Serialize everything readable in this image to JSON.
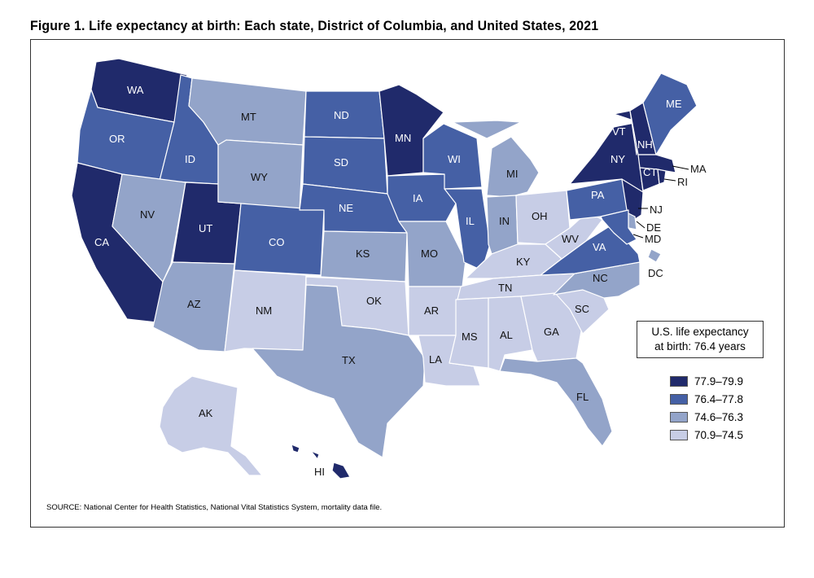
{
  "title": "Figure 1. Life expectancy at birth: Each state, District of Columbia, and United States, 2021",
  "us_box": {
    "line1": "U.S. life expectancy",
    "line2": "at birth: 76.4 years"
  },
  "colors": {
    "c1": "#202a6b",
    "c2": "#4560a5",
    "c3": "#93a4c9",
    "c4": "#c7cde6"
  },
  "legend": [
    {
      "label": "77.9–79.9",
      "color": "#202a6b"
    },
    {
      "label": "76.4–77.8",
      "color": "#4560a5"
    },
    {
      "label": "74.6–76.3",
      "color": "#93a4c9"
    },
    {
      "label": "70.9–74.5",
      "color": "#c7cde6"
    }
  ],
  "states": {
    "WA": {
      "label": "WA",
      "class": "77.9–79.9"
    },
    "OR": {
      "label": "OR",
      "class": "76.4–77.8"
    },
    "CA": {
      "label": "CA",
      "class": "77.9–79.9"
    },
    "ID": {
      "label": "ID",
      "class": "76.4–77.8"
    },
    "NV": {
      "label": "NV",
      "class": "74.6–76.3"
    },
    "UT": {
      "label": "UT",
      "class": "77.9–79.9"
    },
    "AZ": {
      "label": "AZ",
      "class": "74.6–76.3"
    },
    "MT": {
      "label": "MT",
      "class": "74.6–76.3"
    },
    "WY": {
      "label": "WY",
      "class": "74.6–76.3"
    },
    "CO": {
      "label": "CO",
      "class": "76.4–77.8"
    },
    "NM": {
      "label": "NM",
      "class": "70.9–74.5"
    },
    "ND": {
      "label": "ND",
      "class": "76.4–77.8"
    },
    "SD": {
      "label": "SD",
      "class": "76.4–77.8"
    },
    "NE": {
      "label": "NE",
      "class": "76.4–77.8"
    },
    "KS": {
      "label": "KS",
      "class": "74.6–76.3"
    },
    "OK": {
      "label": "OK",
      "class": "70.9–74.5"
    },
    "TX": {
      "label": "TX",
      "class": "74.6–76.3"
    },
    "MN": {
      "label": "MN",
      "class": "77.9–79.9"
    },
    "IA": {
      "label": "IA",
      "class": "76.4–77.8"
    },
    "MO": {
      "label": "MO",
      "class": "74.6–76.3"
    },
    "AR": {
      "label": "AR",
      "class": "70.9–74.5"
    },
    "LA": {
      "label": "LA",
      "class": "70.9–74.5"
    },
    "WI": {
      "label": "WI",
      "class": "76.4–77.8"
    },
    "IL": {
      "label": "IL",
      "class": "76.4–77.8"
    },
    "MI": {
      "label": "MI",
      "class": "74.6–76.3"
    },
    "IN": {
      "label": "IN",
      "class": "74.6–76.3"
    },
    "OH": {
      "label": "OH",
      "class": "70.9–74.5"
    },
    "KY": {
      "label": "KY",
      "class": "70.9–74.5"
    },
    "TN": {
      "label": "TN",
      "class": "70.9–74.5"
    },
    "MS": {
      "label": "MS",
      "class": "70.9–74.5"
    },
    "AL": {
      "label": "AL",
      "class": "70.9–74.5"
    },
    "GA": {
      "label": "GA",
      "class": "70.9–74.5"
    },
    "FL": {
      "label": "FL",
      "class": "74.6–76.3"
    },
    "SC": {
      "label": "SC",
      "class": "70.9–74.5"
    },
    "NC": {
      "label": "NC",
      "class": "74.6–76.3"
    },
    "VA": {
      "label": "VA",
      "class": "76.4–77.8"
    },
    "WV": {
      "label": "WV",
      "class": "70.9–74.5"
    },
    "PA": {
      "label": "PA",
      "class": "76.4–77.8"
    },
    "NY": {
      "label": "NY",
      "class": "77.9–79.9"
    },
    "VT": {
      "label": "VT",
      "class": "77.9–79.9"
    },
    "NH": {
      "label": "NH",
      "class": "77.9–79.9"
    },
    "ME": {
      "label": "ME",
      "class": "76.4–77.8"
    },
    "MA": {
      "label": "MA",
      "class": "77.9–79.9"
    },
    "RI": {
      "label": "RI",
      "class": "77.9–79.9"
    },
    "CT": {
      "label": "CT",
      "class": "77.9–79.9"
    },
    "NJ": {
      "label": "NJ",
      "class": "77.9–79.9"
    },
    "DE": {
      "label": "DE",
      "class": "74.6–76.3"
    },
    "MD": {
      "label": "MD",
      "class": "76.4–77.8"
    },
    "DC": {
      "label": "DC",
      "class": "74.6–76.3"
    },
    "AK": {
      "label": "AK",
      "class": "70.9–74.5"
    },
    "HI": {
      "label": "HI",
      "class": "77.9–79.9"
    }
  },
  "source": "SOURCE: National Center for Health Statistics, National Vital Statistics System, mortality data file."
}
